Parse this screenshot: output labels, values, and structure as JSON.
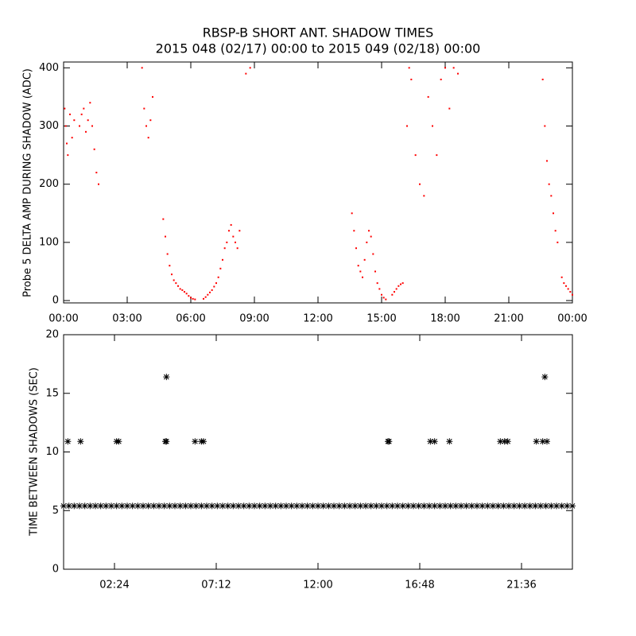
{
  "chart_data": [
    {
      "type": "scatter",
      "title": "RBSP-B SHORT ANT. SHADOW TIMES",
      "subtitle": "2015 048 (02/17) 00:00 to 2015 049 (02/18) 00:00",
      "y_label": "Probe 5 DELTA AMP DURING SHADOW (ADC)",
      "xlim": [
        0,
        24
      ],
      "ylim": [
        -4,
        410
      ],
      "xticks": [
        {
          "value": 0,
          "label": "00:00"
        },
        {
          "value": 3,
          "label": "03:00"
        },
        {
          "value": 6,
          "label": "06:00"
        },
        {
          "value": 9,
          "label": "09:00"
        },
        {
          "value": 12,
          "label": "12:00"
        },
        {
          "value": 15,
          "label": "15:00"
        },
        {
          "value": 18,
          "label": "18:00"
        },
        {
          "value": 21,
          "label": "21:00"
        },
        {
          "value": 24,
          "label": "00:00"
        }
      ],
      "yticks": [
        0,
        100,
        200,
        300,
        400
      ],
      "marker": "dot",
      "series": [
        {
          "color": "#ff0000",
          "x": [
            0.05,
            0.1,
            0.15,
            0.2,
            0.3,
            0.4,
            0.5,
            0.75,
            0.85,
            0.95,
            1.05,
            1.15,
            1.25,
            1.35,
            1.45,
            1.55,
            1.65,
            3.7,
            3.8,
            3.9,
            4.0,
            4.1,
            4.2,
            4.7,
            4.8,
            4.9,
            5.0,
            5.1,
            5.2,
            5.3,
            5.4,
            5.5,
            5.6,
            5.7,
            5.8,
            5.9,
            6.0,
            6.1,
            6.2,
            6.6,
            6.7,
            6.8,
            6.9,
            7.0,
            7.1,
            7.2,
            7.3,
            7.4,
            7.5,
            7.6,
            7.7,
            7.8,
            7.9,
            8.0,
            8.1,
            8.2,
            8.3,
            8.6,
            8.8,
            13.6,
            13.7,
            13.8,
            13.9,
            14.0,
            14.1,
            14.2,
            14.3,
            14.4,
            14.5,
            14.6,
            14.7,
            14.8,
            14.9,
            15.0,
            15.1,
            15.2,
            15.5,
            15.6,
            15.7,
            15.8,
            15.9,
            16.0,
            16.2,
            16.3,
            16.4,
            16.6,
            16.8,
            17.0,
            17.2,
            17.4,
            17.6,
            17.8,
            18.0,
            18.2,
            18.4,
            18.6,
            22.6,
            22.7,
            22.8,
            22.9,
            23.0,
            23.1,
            23.2,
            23.3,
            23.5,
            23.6,
            23.7,
            23.8,
            23.9,
            24.0
          ],
          "values": [
            330,
            300,
            270,
            250,
            320,
            280,
            310,
            300,
            320,
            330,
            290,
            310,
            340,
            300,
            260,
            220,
            200,
            400,
            330,
            300,
            280,
            310,
            350,
            140,
            110,
            80,
            60,
            45,
            35,
            30,
            25,
            20,
            18,
            15,
            12,
            8,
            5,
            3,
            2,
            3,
            6,
            10,
            14,
            18,
            24,
            30,
            40,
            55,
            70,
            90,
            100,
            120,
            130,
            110,
            100,
            90,
            120,
            390,
            400,
            150,
            120,
            90,
            60,
            50,
            40,
            70,
            100,
            120,
            110,
            80,
            50,
            30,
            20,
            10,
            5,
            2,
            10,
            15,
            20,
            25,
            28,
            30,
            300,
            400,
            380,
            250,
            200,
            180,
            350,
            300,
            250,
            380,
            400,
            330,
            400,
            390,
            380,
            300,
            240,
            200,
            180,
            150,
            120,
            100,
            40,
            30,
            25,
            20,
            15,
            10
          ]
        }
      ]
    },
    {
      "type": "scatter",
      "y_label": "TIME BETWEEN SHADOWS (SEC)",
      "xlim": [
        0,
        24
      ],
      "ylim": [
        0,
        20
      ],
      "xticks": [
        {
          "value": 2.4,
          "label": "02:24"
        },
        {
          "value": 7.2,
          "label": "07:12"
        },
        {
          "value": 12,
          "label": "12:00"
        },
        {
          "value": 16.8,
          "label": "16:48"
        },
        {
          "value": 21.6,
          "label": "21:36"
        }
      ],
      "yticks": [
        0,
        5,
        10,
        15,
        20
      ],
      "marker": "asterisk",
      "series": [
        {
          "color": "#000000",
          "x": [
            0,
            0.25,
            0.5,
            0.75,
            1,
            1.25,
            1.5,
            1.75,
            2,
            2.25,
            2.5,
            2.75,
            3,
            3.25,
            3.5,
            3.75,
            4,
            4.25,
            4.5,
            4.75,
            5,
            5.25,
            5.5,
            5.75,
            6,
            6.25,
            6.5,
            6.75,
            7,
            7.25,
            7.5,
            7.75,
            8,
            8.25,
            8.5,
            8.75,
            9,
            9.25,
            9.5,
            9.75,
            10,
            10.25,
            10.5,
            10.75,
            11,
            11.25,
            11.5,
            11.75,
            12,
            12.25,
            12.5,
            12.75,
            13,
            13.25,
            13.5,
            13.75,
            14,
            14.25,
            14.5,
            14.75,
            15,
            15.25,
            15.5,
            15.75,
            16,
            16.25,
            16.5,
            16.75,
            17,
            17.25,
            17.5,
            17.75,
            18,
            18.25,
            18.5,
            18.75,
            19,
            19.25,
            19.5,
            19.75,
            20,
            20.25,
            20.5,
            20.75,
            21,
            21.25,
            21.5,
            21.75,
            22,
            22.25,
            22.5,
            22.75,
            23,
            23.25,
            23.5,
            23.75,
            24
          ],
          "values": [
            5.4,
            5.4,
            5.4,
            5.4,
            5.4,
            5.4,
            5.4,
            5.4,
            5.4,
            5.4,
            5.4,
            5.4,
            5.4,
            5.4,
            5.4,
            5.4,
            5.4,
            5.4,
            5.4,
            5.4,
            5.4,
            5.4,
            5.4,
            5.4,
            5.4,
            5.4,
            5.4,
            5.4,
            5.4,
            5.4,
            5.4,
            5.4,
            5.4,
            5.4,
            5.4,
            5.4,
            5.4,
            5.4,
            5.4,
            5.4,
            5.4,
            5.4,
            5.4,
            5.4,
            5.4,
            5.4,
            5.4,
            5.4,
            5.4,
            5.4,
            5.4,
            5.4,
            5.4,
            5.4,
            5.4,
            5.4,
            5.4,
            5.4,
            5.4,
            5.4,
            5.4,
            5.4,
            5.4,
            5.4,
            5.4,
            5.4,
            5.4,
            5.4,
            5.4,
            5.4,
            5.4,
            5.4,
            5.4,
            5.4,
            5.4,
            5.4,
            5.4,
            5.4,
            5.4,
            5.4,
            5.4,
            5.4,
            5.4,
            5.4,
            5.4,
            5.4,
            5.4,
            5.4,
            5.4,
            5.4,
            5.4,
            5.4,
            5.4,
            5.4,
            5.4,
            5.4,
            5.4
          ]
        },
        {
          "color": "#000000",
          "x": [
            0.2,
            0.8,
            2.5,
            2.6,
            4.8,
            4.85,
            6.2,
            6.5,
            6.6,
            15.3,
            15.35,
            17.3,
            17.5,
            18.2,
            20.6,
            20.8,
            20.95,
            22.3,
            22.6,
            22.8,
            4.85,
            22.7
          ],
          "values": [
            10.9,
            10.9,
            10.9,
            10.9,
            10.9,
            10.9,
            10.9,
            10.9,
            10.9,
            10.9,
            10.9,
            10.9,
            10.9,
            10.9,
            10.9,
            10.9,
            10.9,
            10.9,
            10.9,
            10.9,
            16.4,
            16.4
          ]
        }
      ]
    }
  ]
}
